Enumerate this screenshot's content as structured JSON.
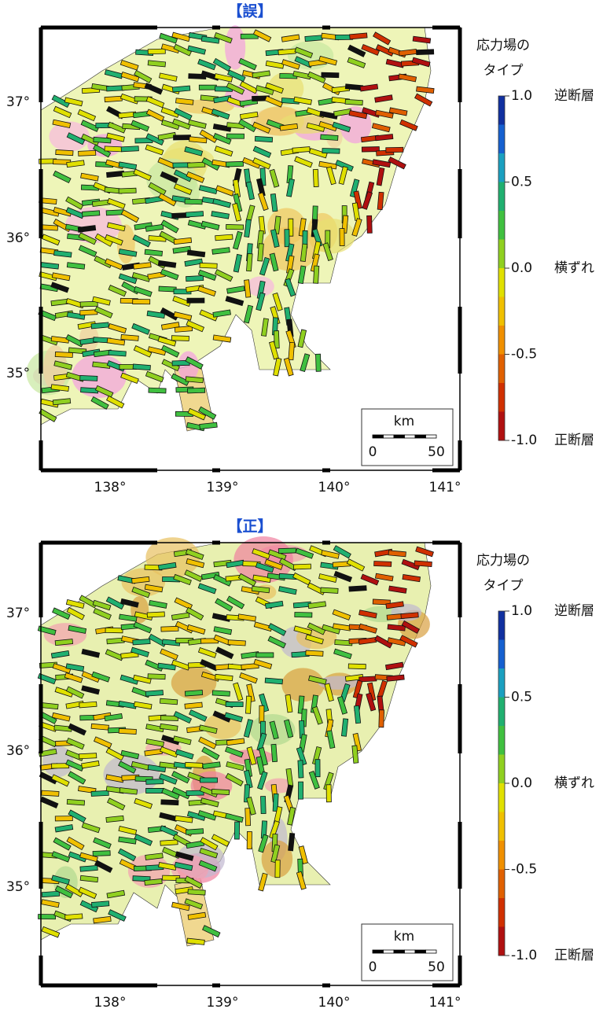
{
  "panels": [
    {
      "title": "【誤】",
      "lon_ticks": [
        "138°",
        "139°",
        "140°",
        "141°"
      ],
      "lat_ticks": [
        "37°",
        "36°",
        "35°"
      ],
      "legend": {
        "title_lines": [
          "応力場の",
          "タイプ"
        ],
        "ticks": [
          "1.0",
          "0.5",
          "0.0",
          "-0.5",
          "-1.0"
        ],
        "type_labels": [
          "逆断層",
          "横ずれ",
          "正断層"
        ]
      },
      "scale": {
        "unit": "km",
        "start": "0",
        "end": "50"
      }
    },
    {
      "title": "【正】",
      "lon_ticks": [
        "138°",
        "139°",
        "140°",
        "141°"
      ],
      "lat_ticks": [
        "37°",
        "36°",
        "35°"
      ],
      "legend": {
        "title_lines": [
          "応力場の",
          "タイプ"
        ],
        "ticks": [
          "1.0",
          "0.5",
          "0.0",
          "-0.5",
          "-1.0"
        ],
        "type_labels": [
          "逆断層",
          "横ずれ",
          "正断層"
        ]
      },
      "scale": {
        "unit": "km",
        "start": "0",
        "end": "50"
      }
    }
  ]
}
